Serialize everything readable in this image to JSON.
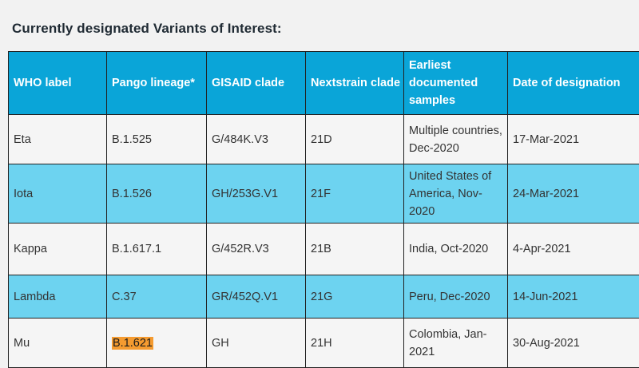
{
  "heading": "Currently designated Variants of Interest:",
  "columns": [
    "WHO label",
    "Pango lineage*",
    "GISAID clade",
    "Nextstrain clade",
    "Earliest documented samples",
    "Date of designation"
  ],
  "rows": [
    {
      "who_label": "Eta",
      "pango": "B.1.525",
      "gisaid": "G/484K.V3",
      "nextstrain": "21D",
      "earliest": "Multiple countries, Dec-2020",
      "date": "17-Mar-2021"
    },
    {
      "who_label": "Iota",
      "pango": "B.1.526",
      "gisaid": "GH/253G.V1",
      "nextstrain": "21F",
      "earliest": "United States of America, Nov-2020",
      "date": "24-Mar-2021"
    },
    {
      "who_label": "Kappa",
      "pango": "B.1.617.1",
      "gisaid": "G/452R.V3",
      "nextstrain": "21B",
      "earliest": "India, Oct-2020",
      "date": "4-Apr-2021"
    },
    {
      "who_label": "Lambda",
      "pango": "C.37",
      "gisaid": "GR/452Q.V1",
      "nextstrain": "21G",
      "earliest": "Peru, Dec-2020",
      "date": "14-Jun-2021"
    },
    {
      "who_label": "Mu",
      "pango": "B.1.621",
      "gisaid": "GH",
      "nextstrain": "21H",
      "earliest": "Colombia, Jan-2021",
      "date": "30-Aug-2021"
    }
  ],
  "colors": {
    "header_bg": "#0aa5d8",
    "alt_row_bg": "#6dd3f0",
    "plain_row_bg": "#f5f5f5",
    "highlight": "#f59b30"
  }
}
